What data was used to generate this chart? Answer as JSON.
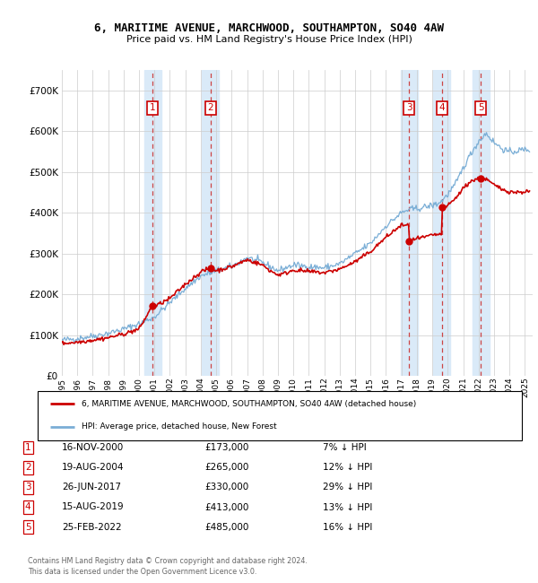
{
  "title_line1": "6, MARITIME AVENUE, MARCHWOOD, SOUTHAMPTON, SO40 4AW",
  "title_line2": "Price paid vs. HM Land Registry's House Price Index (HPI)",
  "xlim_start": 1995.0,
  "xlim_end": 2025.5,
  "ylim_min": 0,
  "ylim_max": 750000,
  "yticks": [
    0,
    100000,
    200000,
    300000,
    400000,
    500000,
    600000,
    700000
  ],
  "ytick_labels": [
    "£0",
    "£100K",
    "£200K",
    "£300K",
    "£400K",
    "£500K",
    "£600K",
    "£700K"
  ],
  "sale_dates": [
    2000.88,
    2004.63,
    2017.49,
    2019.62,
    2022.15
  ],
  "sale_prices": [
    173000,
    265000,
    330000,
    413000,
    485000
  ],
  "sale_labels": [
    "1",
    "2",
    "3",
    "4",
    "5"
  ],
  "legend_red_label": "6, MARITIME AVENUE, MARCHWOOD, SOUTHAMPTON, SO40 4AW (detached house)",
  "legend_blue_label": "HPI: Average price, detached house, New Forest",
  "table_data": [
    [
      "1",
      "16-NOV-2000",
      "£173,000",
      "7% ↓ HPI"
    ],
    [
      "2",
      "19-AUG-2004",
      "£265,000",
      "12% ↓ HPI"
    ],
    [
      "3",
      "26-JUN-2017",
      "£330,000",
      "29% ↓ HPI"
    ],
    [
      "4",
      "15-AUG-2019",
      "£413,000",
      "13% ↓ HPI"
    ],
    [
      "5",
      "25-FEB-2022",
      "£485,000",
      "16% ↓ HPI"
    ]
  ],
  "footnote": "Contains HM Land Registry data © Crown copyright and database right 2024.\nThis data is licensed under the Open Government Licence v3.0.",
  "bg_color": "#ffffff",
  "plot_bg_color": "#ffffff",
  "grid_color": "#cccccc",
  "red_line_color": "#cc0000",
  "blue_line_color": "#7aaed6",
  "sale_marker_color": "#cc0000",
  "dashed_vline_color": "#cc4444",
  "shade_color": "#daeaf8"
}
